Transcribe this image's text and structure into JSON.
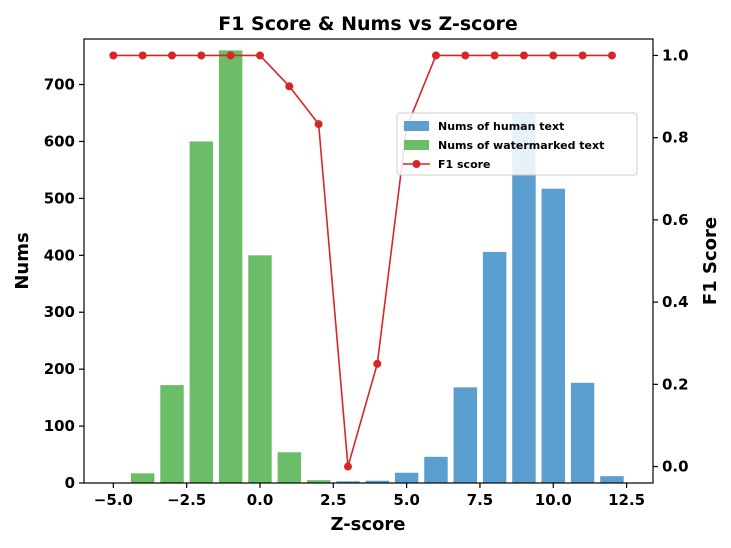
{
  "chart_data": {
    "type": "bar",
    "title": "F1 Score & Nums vs Z-score",
    "xlabel": "Z-score",
    "ylabel": "Nums",
    "y2label": "F1 Score",
    "xlim": [
      -6.0,
      13.4
    ],
    "ylim": [
      0,
      780
    ],
    "y2lim": [
      -0.04,
      1.04
    ],
    "xticks": [
      -5.0,
      -2.5,
      0.0,
      2.5,
      5.0,
      7.5,
      10.0,
      12.5
    ],
    "xtick_labels": [
      "−5.0",
      "−2.5",
      "0.0",
      "2.5",
      "5.0",
      "7.5",
      "10.0",
      "12.5"
    ],
    "yticks": [
      0,
      100,
      200,
      300,
      400,
      500,
      600,
      700
    ],
    "ytick_labels": [
      "0",
      "100",
      "200",
      "300",
      "400",
      "500",
      "600",
      "700"
    ],
    "y2ticks": [
      0.0,
      0.2,
      0.4,
      0.6,
      0.8,
      1.0
    ],
    "y2tick_labels": [
      "0.0",
      "0.2",
      "0.4",
      "0.6",
      "0.8",
      "1.0"
    ],
    "grid": false,
    "legend_position": "upper-right",
    "bar_width": 0.8,
    "series": [
      {
        "name": "Nums of human text",
        "kind": "bar",
        "color": "#5a9fcf",
        "x": [
          3,
          4,
          5,
          6,
          7,
          8,
          9,
          10,
          11,
          12
        ],
        "values": [
          3,
          4,
          18,
          46,
          168,
          406,
          648,
          517,
          176,
          12
        ]
      },
      {
        "name": "Nums of watermarked text",
        "kind": "bar",
        "color": "#6cbd68",
        "x": [
          -4,
          -3,
          -2,
          -1,
          0,
          1,
          2
        ],
        "values": [
          17,
          172,
          600,
          760,
          400,
          54,
          5
        ]
      },
      {
        "name": "F1 score",
        "kind": "line",
        "axis": "right",
        "color": "#d62728",
        "x": [
          -5,
          -4,
          -3,
          -2,
          -1,
          0,
          1,
          2,
          3,
          4,
          5,
          6,
          7,
          8,
          9,
          10,
          11,
          12
        ],
        "values": [
          1.0,
          1.0,
          1.0,
          1.0,
          1.0,
          1.0,
          0.925,
          0.833,
          0.0,
          0.25,
          0.825,
          1.0,
          1.0,
          1.0,
          1.0,
          1.0,
          1.0,
          1.0
        ]
      }
    ]
  }
}
